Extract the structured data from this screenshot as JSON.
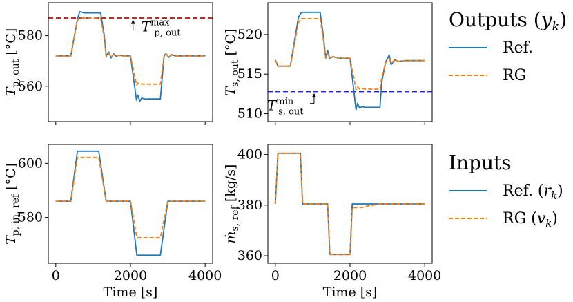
{
  "colors": {
    "ref": "#1f77b4",
    "rg": "#ff7f0e",
    "tmax_line": "#e31a1c",
    "tmin_line": "#1f1fd6"
  },
  "legends": [
    {
      "title": "Outputs (y",
      "title_sub": "k",
      "title_close": ")",
      "entries": [
        {
          "text": "Ref.",
          "style": "solid",
          "color_key": "ref"
        },
        {
          "text": "RG",
          "style": "dashed",
          "color_key": "rg"
        }
      ]
    },
    {
      "title": "Inputs",
      "title_sub": "",
      "title_close": "",
      "entries": [
        {
          "text": "Ref. (r",
          "sub": "k",
          "close": ")",
          "style": "solid",
          "color_key": "ref"
        },
        {
          "text": "RG (v",
          "sub": "k",
          "close": ")",
          "style": "dashed",
          "color_key": "rg"
        }
      ]
    }
  ],
  "chart_data": [
    {
      "type": "line",
      "ylabel": {
        "main": "T",
        "sub": "p, out",
        "unit": "[°C]"
      },
      "xlabel": "",
      "xlim": [
        -200,
        4200
      ],
      "ylim": [
        546,
        593
      ],
      "xticks": [
        0,
        2000,
        4000
      ],
      "yticks": [
        560,
        580
      ],
      "show_xtick_labels": false,
      "hlines": [
        {
          "y": 587,
          "color_key": "tmax_line"
        }
      ],
      "annotation": {
        "main": "T",
        "sup": "max",
        "sub": "p, out",
        "x": 2550,
        "y": 583.8,
        "arrow_from_y": 582.2,
        "arrow_to_y": 586
      },
      "series": [
        {
          "name": "Ref.",
          "style": "solid",
          "color_key": "ref",
          "x": [
            0,
            400,
            580,
            640,
            760,
            900,
            1200,
            1300,
            1350,
            1420,
            1480,
            1550,
            1620,
            1700,
            1800,
            1900,
            2000,
            2160,
            2200,
            2250,
            2300,
            2400,
            2500,
            2600,
            2700,
            2800,
            2900,
            2950,
            3020,
            3100,
            3200,
            3400,
            4000
          ],
          "y": [
            572,
            572,
            586.5,
            589.5,
            589,
            589,
            589,
            580,
            572,
            573.5,
            571.2,
            572.8,
            571.8,
            572.3,
            572,
            572,
            572,
            554.5,
            556.5,
            554,
            555.3,
            554.9,
            555,
            555,
            555,
            555,
            572,
            573,
            571.4,
            572.5,
            572,
            572,
            572
          ]
        },
        {
          "name": "RG",
          "style": "dashed",
          "color_key": "rg",
          "x": [
            0,
            400,
            580,
            640,
            760,
            900,
            1200,
            1300,
            1350,
            1420,
            1480,
            1550,
            1620,
            1700,
            1800,
            1900,
            2000,
            2160,
            2200,
            2250,
            2300,
            2400,
            2500,
            2600,
            2700,
            2800,
            2900,
            2950,
            3020,
            3100,
            3200,
            3400,
            4000
          ],
          "y": [
            572,
            572,
            586,
            587,
            587,
            587,
            587,
            579,
            571.5,
            573,
            571.6,
            572.5,
            571.9,
            572.2,
            572,
            572,
            572,
            560.5,
            561.3,
            560.6,
            560.9,
            560.8,
            560.8,
            560.8,
            560.8,
            560.8,
            572,
            572.8,
            571.6,
            572.3,
            572,
            572,
            572
          ]
        }
      ]
    },
    {
      "type": "line",
      "ylabel": {
        "main": "T",
        "sub": "s, out",
        "unit": "[°C]"
      },
      "xlabel": "",
      "xlim": [
        -200,
        4200
      ],
      "ylim": [
        509,
        524
      ],
      "xticks": [
        0,
        2000,
        4000
      ],
      "yticks": [
        510,
        515,
        520
      ],
      "show_xtick_labels": false,
      "hlines": [
        {
          "y": 512.8,
          "color_key": "tmin_line"
        }
      ],
      "annotation": {
        "main": "T",
        "sup": "min",
        "sub": "s, out",
        "x": 150,
        "y": 511.3,
        "arrow_from_y": 511.3,
        "arrow_to_y": 512.5
      },
      "series": [
        {
          "name": "Ref.",
          "style": "solid",
          "color_key": "ref",
          "x": [
            0,
            70,
            100,
            400,
            560,
            620,
            700,
            800,
            1200,
            1280,
            1350,
            1400,
            1450,
            1550,
            1700,
            1900,
            2000,
            2160,
            2200,
            2260,
            2320,
            2400,
            2800,
            2850,
            2950,
            3050,
            3100,
            3200,
            3300,
            3500,
            4000
          ],
          "y": [
            516.8,
            516,
            516,
            516,
            520.5,
            522.2,
            522.8,
            522.8,
            522.8,
            520,
            517,
            518,
            517,
            517.2,
            517,
            517,
            517,
            510.5,
            511.3,
            510.7,
            510.9,
            510.8,
            510.8,
            514,
            516.5,
            517.4,
            516.2,
            516.8,
            516.6,
            516.7,
            516.7
          ]
        },
        {
          "name": "RG",
          "style": "dashed",
          "color_key": "rg",
          "x": [
            0,
            70,
            100,
            400,
            560,
            620,
            700,
            800,
            1200,
            1280,
            1350,
            1400,
            1450,
            1550,
            1700,
            1900,
            2000,
            2160,
            2200,
            2260,
            2320,
            2400,
            2800,
            2850,
            2950,
            3050,
            3100,
            3200,
            3300,
            3500,
            4000
          ],
          "y": [
            516.8,
            516,
            516,
            516,
            520,
            521.5,
            522,
            522,
            522,
            519.5,
            517,
            517.6,
            517.1,
            517.2,
            517,
            517,
            517,
            513,
            513.4,
            513.1,
            513.2,
            513.1,
            513.1,
            514.6,
            516.4,
            517,
            516.4,
            516.8,
            516.6,
            516.7,
            516.7
          ]
        }
      ]
    },
    {
      "type": "line",
      "ylabel": {
        "main": "T",
        "sub": "p, in, ref",
        "unit": "[°C]"
      },
      "xlabel": "Time [s]",
      "xlim": [
        -200,
        4200
      ],
      "ylim": [
        563,
        607
      ],
      "xticks": [
        0,
        2000,
        4000
      ],
      "yticks": [
        580,
        600
      ],
      "show_xtick_labels": true,
      "hlines": [],
      "series": [
        {
          "name": "Ref. (r_k)",
          "style": "solid",
          "color_key": "ref",
          "x": [
            0,
            400,
            580,
            1150,
            1350,
            2000,
            2170,
            2800,
            3000,
            4000
          ],
          "y": [
            586,
            586,
            604.5,
            604.5,
            586,
            586,
            566,
            566,
            586,
            586
          ]
        },
        {
          "name": "RG (v_k)",
          "style": "dashed",
          "color_key": "rg",
          "x": [
            0,
            400,
            580,
            1150,
            1350,
            2000,
            2170,
            2800,
            3000,
            4000
          ],
          "y": [
            586,
            586,
            602.2,
            602.2,
            586,
            586,
            572.5,
            572.5,
            586,
            586
          ]
        }
      ]
    },
    {
      "type": "line",
      "ylabel": {
        "main": "ṁ",
        "sub": "s, ref",
        "unit": "[kg/s]"
      },
      "xlabel": "Time [s]",
      "xlim": [
        -200,
        4200
      ],
      "ylim": [
        357,
        404
      ],
      "xticks": [
        0,
        2000,
        4000
      ],
      "yticks": [
        360,
        380,
        400
      ],
      "show_xtick_labels": true,
      "hlines": [],
      "series": [
        {
          "name": "Ref. (r_k)",
          "style": "solid",
          "color_key": "ref",
          "x": [
            0,
            70,
            670,
            730,
            1400,
            1460,
            2000,
            2060,
            4000
          ],
          "y": [
            380.5,
            400.5,
            400.5,
            380.5,
            380.5,
            360.5,
            360.5,
            380.5,
            380.5
          ]
        },
        {
          "name": "RG (v_k)",
          "style": "dashed",
          "color_key": "rg",
          "x": [
            0,
            70,
            670,
            730,
            1400,
            1460,
            2000,
            2060,
            2400,
            2450,
            2800,
            2900,
            4000
          ],
          "y": [
            380.5,
            400.5,
            400.5,
            380.5,
            380.5,
            360.5,
            360.5,
            379,
            379.2,
            379.6,
            380.5,
            380.5,
            380.5
          ]
        }
      ]
    }
  ]
}
